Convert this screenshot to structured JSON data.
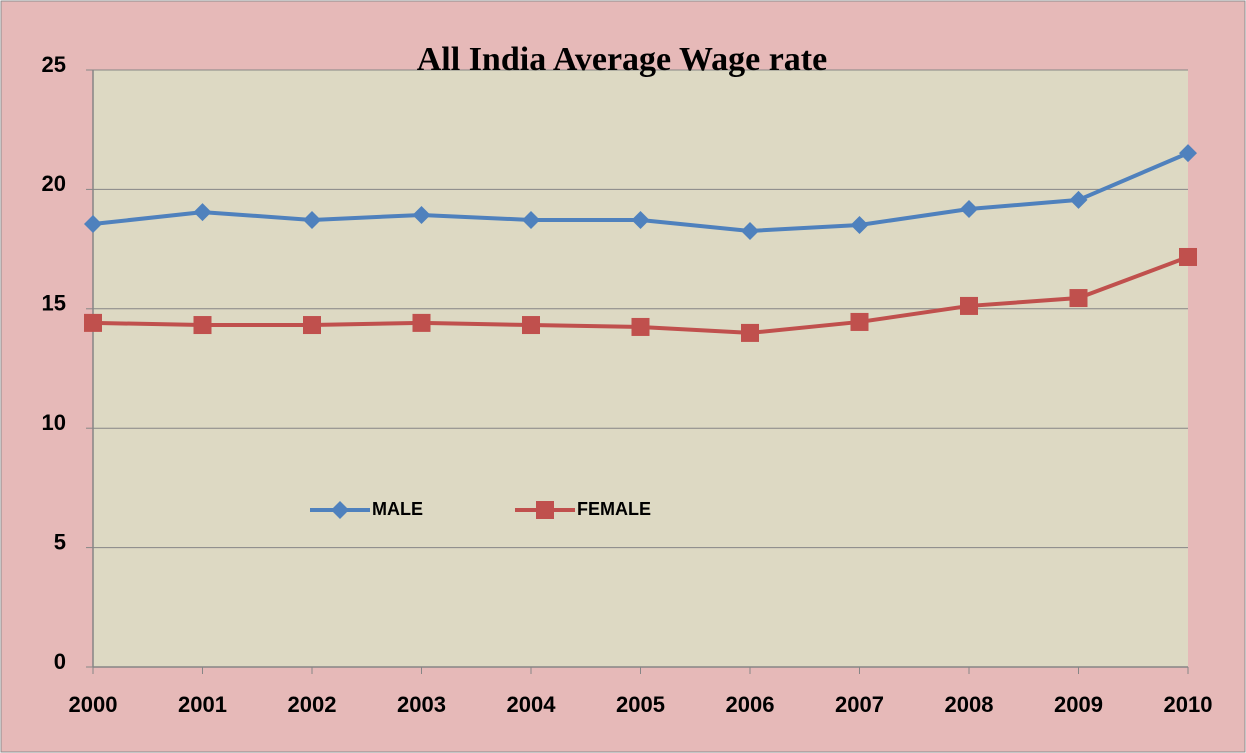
{
  "chart_data": {
    "type": "line",
    "title": "All India Average Wage rate",
    "categories": [
      "2000",
      "2001",
      "2002",
      "2003",
      "2004",
      "2005",
      "2006",
      "2007",
      "2008",
      "2009",
      "2010"
    ],
    "series": [
      {
        "name": "MALE",
        "color": "#4f81bd",
        "values": [
          18.55,
          19.05,
          18.72,
          18.93,
          18.72,
          18.72,
          18.26,
          18.51,
          19.18,
          19.56,
          21.52
        ]
      },
      {
        "name": "FEMALE",
        "color": "#c0504d",
        "values": [
          14.41,
          14.32,
          14.32,
          14.41,
          14.32,
          14.24,
          13.99,
          14.45,
          15.12,
          15.45,
          17.17
        ]
      }
    ],
    "ylim": [
      0,
      25
    ],
    "yticks": [
      0,
      5,
      10,
      15,
      20,
      25
    ],
    "grid": true
  }
}
